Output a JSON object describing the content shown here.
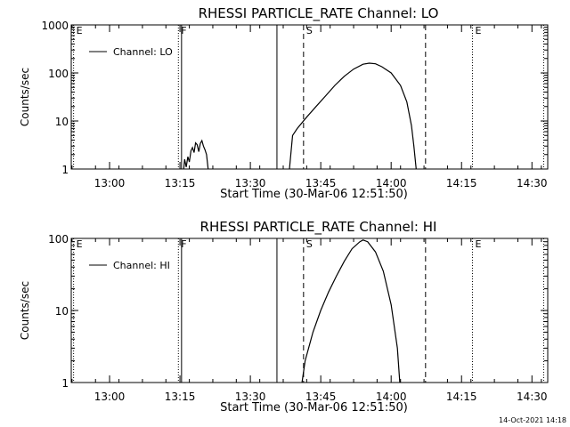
{
  "chart_data": [
    {
      "type": "line",
      "title": "RHESSI PARTICLE_RATE Channel: LO",
      "xlabel": "Start Time (30-Mar-06 12:51:50)",
      "ylabel": "Counts/sec",
      "yscale": "log",
      "ylim": [
        1,
        1000
      ],
      "yticks": [
        1,
        10,
        100,
        1000
      ],
      "ytick_labels": [
        "1",
        "10",
        "100",
        "1000"
      ],
      "xlim": [
        12.8639,
        14.5561
      ],
      "xticks": [
        13.0,
        13.25,
        13.5,
        13.75,
        14.0,
        14.25,
        14.5
      ],
      "xtick_labels": [
        "13:00",
        "13:15",
        "13:30",
        "13:45",
        "14:00",
        "14:15",
        "14:30"
      ],
      "legend_label": "Channel: LO",
      "series": [
        {
          "name": "Channel: LO",
          "segments": [
            [
              {
                "x": 13.2633,
                "y": 1.0
              },
              {
                "x": 13.2667,
                "y": 1.6
              },
              {
                "x": 13.2722,
                "y": 1.1
              },
              {
                "x": 13.2778,
                "y": 1.8
              },
              {
                "x": 13.2833,
                "y": 1.4
              },
              {
                "x": 13.2889,
                "y": 2.4
              },
              {
                "x": 13.2944,
                "y": 2.8
              },
              {
                "x": 13.3,
                "y": 2.2
              },
              {
                "x": 13.3056,
                "y": 3.5
              },
              {
                "x": 13.3111,
                "y": 3.2
              },
              {
                "x": 13.3167,
                "y": 2.3
              },
              {
                "x": 13.3222,
                "y": 3.4
              },
              {
                "x": 13.3278,
                "y": 3.9
              },
              {
                "x": 13.3333,
                "y": 3.0
              },
              {
                "x": 13.3389,
                "y": 2.5
              },
              {
                "x": 13.3444,
                "y": 2.0
              },
              {
                "x": 13.35,
                "y": 1.0
              }
            ],
            [
              {
                "x": 13.6389,
                "y": 1.0
              },
              {
                "x": 13.65,
                "y": 5.0
              },
              {
                "x": 13.6667,
                "y": 7.0
              },
              {
                "x": 13.7,
                "y": 12.0
              },
              {
                "x": 13.7333,
                "y": 20.0
              },
              {
                "x": 13.7667,
                "y": 33.0
              },
              {
                "x": 13.8,
                "y": 55.0
              },
              {
                "x": 13.8333,
                "y": 85.0
              },
              {
                "x": 13.8667,
                "y": 120.0
              },
              {
                "x": 13.9,
                "y": 152.0
              },
              {
                "x": 13.9222,
                "y": 160.0
              },
              {
                "x": 13.9444,
                "y": 155.0
              },
              {
                "x": 13.9667,
                "y": 135.0
              },
              {
                "x": 14.0,
                "y": 100.0
              },
              {
                "x": 14.0333,
                "y": 55.0
              },
              {
                "x": 14.0556,
                "y": 25.0
              },
              {
                "x": 14.0722,
                "y": 8.0
              },
              {
                "x": 14.0806,
                "y": 3.0
              },
              {
                "x": 14.0889,
                "y": 1.0
              }
            ]
          ]
        }
      ],
      "markers": [
        {
          "x": 12.8722,
          "label": "E",
          "style": "dotted"
        },
        {
          "x": 13.2444,
          "label": "F",
          "style": "dotted"
        },
        {
          "x": 13.2556,
          "label": "",
          "style": "solid"
        },
        {
          "x": 13.5944,
          "label": "",
          "style": "solid"
        },
        {
          "x": 13.6889,
          "label": "S",
          "style": "dashed"
        },
        {
          "x": 14.1222,
          "label": "",
          "style": "dashed"
        },
        {
          "x": 14.2889,
          "label": "E",
          "style": "dotted"
        },
        {
          "x": 14.5417,
          "label": "",
          "style": "dotted"
        }
      ]
    },
    {
      "type": "line",
      "title": "RHESSI PARTICLE_RATE Channel: HI",
      "xlabel": "Start Time (30-Mar-06 12:51:50)",
      "ylabel": "Counts/sec",
      "yscale": "log",
      "ylim": [
        1,
        100
      ],
      "yticks": [
        1,
        10,
        100
      ],
      "ytick_labels": [
        "1",
        "10",
        "100"
      ],
      "xlim": [
        12.8639,
        14.5561
      ],
      "xticks": [
        13.0,
        13.25,
        13.5,
        13.75,
        14.0,
        14.25,
        14.5
      ],
      "xtick_labels": [
        "13:00",
        "13:15",
        "13:30",
        "13:45",
        "14:00",
        "14:15",
        "14:30"
      ],
      "legend_label": "Channel: HI",
      "series": [
        {
          "name": "Channel: HI",
          "segments": [
            [
              {
                "x": 13.6833,
                "y": 1.0
              },
              {
                "x": 13.6944,
                "y": 2.0
              },
              {
                "x": 13.7222,
                "y": 5.0
              },
              {
                "x": 13.75,
                "y": 10.0
              },
              {
                "x": 13.7778,
                "y": 18.0
              },
              {
                "x": 13.8056,
                "y": 30.0
              },
              {
                "x": 13.8333,
                "y": 48.0
              },
              {
                "x": 13.8611,
                "y": 72.0
              },
              {
                "x": 13.8889,
                "y": 90.0
              },
              {
                "x": 13.9,
                "y": 95.0
              },
              {
                "x": 13.9167,
                "y": 90.0
              },
              {
                "x": 13.9444,
                "y": 65.0
              },
              {
                "x": 13.9722,
                "y": 35.0
              },
              {
                "x": 14.0,
                "y": 12.0
              },
              {
                "x": 14.0222,
                "y": 3.0
              },
              {
                "x": 14.0306,
                "y": 1.0
              }
            ]
          ]
        }
      ],
      "markers": [
        {
          "x": 12.8722,
          "label": "E",
          "style": "dotted"
        },
        {
          "x": 13.2444,
          "label": "F",
          "style": "dotted"
        },
        {
          "x": 13.2556,
          "label": "",
          "style": "solid"
        },
        {
          "x": 13.5944,
          "label": "",
          "style": "solid"
        },
        {
          "x": 13.6889,
          "label": "S",
          "style": "dashed"
        },
        {
          "x": 14.1222,
          "label": "",
          "style": "dashed"
        },
        {
          "x": 14.2889,
          "label": "E",
          "style": "dotted"
        },
        {
          "x": 14.5417,
          "label": "",
          "style": "dotted"
        }
      ]
    }
  ],
  "footer": {
    "timestamp": "14-Oct-2021 14:18"
  }
}
